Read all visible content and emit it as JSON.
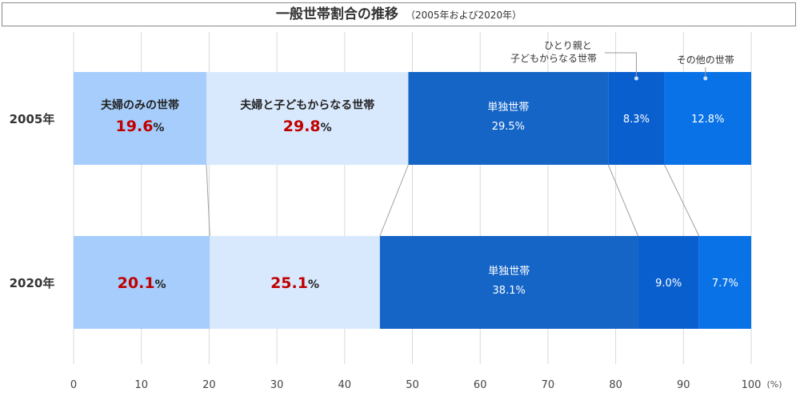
{
  "chart_data": {
    "type": "bar",
    "orientation": "horizontal-stacked-100",
    "title": "一般世帯割合の推移",
    "subtitle": "（2005年および2020年）",
    "categories": [
      "2005年",
      "2020年"
    ],
    "xlim": [
      0,
      100
    ],
    "xticks": [
      "0",
      "10",
      "20",
      "30",
      "40",
      "50",
      "60",
      "70",
      "80",
      "90",
      "100"
    ],
    "xunit": "(%)",
    "grid": true,
    "series": [
      {
        "name": "夫婦のみの世帯",
        "values": [
          19.6,
          20.1
        ],
        "color": "#a6cdfb"
      },
      {
        "name": "夫婦と子どもからなる世帯",
        "values": [
          29.8,
          25.1
        ],
        "color": "#d9e9fd"
      },
      {
        "name": "単独世帯",
        "values": [
          29.5,
          38.1
        ],
        "color": "#1565c7"
      },
      {
        "name": "ひとり親と子どもからなる世帯",
        "values": [
          8.3,
          9.0
        ],
        "color": "#0a5fcf"
      },
      {
        "name": "その他の世帯",
        "values": [
          12.8,
          7.7
        ],
        "color": "#0872e6"
      }
    ],
    "labels_2005": {
      "s1_name": "夫婦のみの世帯",
      "s1_value": "19.6",
      "s1_unit": "%",
      "s2_name": "夫婦と子どもからなる世帯",
      "s2_value": "29.8",
      "s2_unit": "%",
      "s3_name": "単独世帯",
      "s3_value": "29.5%",
      "s4_value": "8.3%",
      "s5_value": "12.8%"
    },
    "labels_2020": {
      "s1_value": "20.1",
      "s1_unit": "%",
      "s2_value": "25.1",
      "s2_unit": "%",
      "s3_name": "単独世帯",
      "s3_value": "38.1%",
      "s4_value": "9.0%",
      "s5_value": "7.7%"
    },
    "annotations": {
      "single_parent_line1": "ひとり親と",
      "single_parent_line2": "子どもからなる世帯",
      "other": "その他の世帯"
    },
    "colors": {
      "highlight": "#c00000",
      "grid": "#d9d9d9",
      "connector": "#a0a0a0"
    }
  }
}
